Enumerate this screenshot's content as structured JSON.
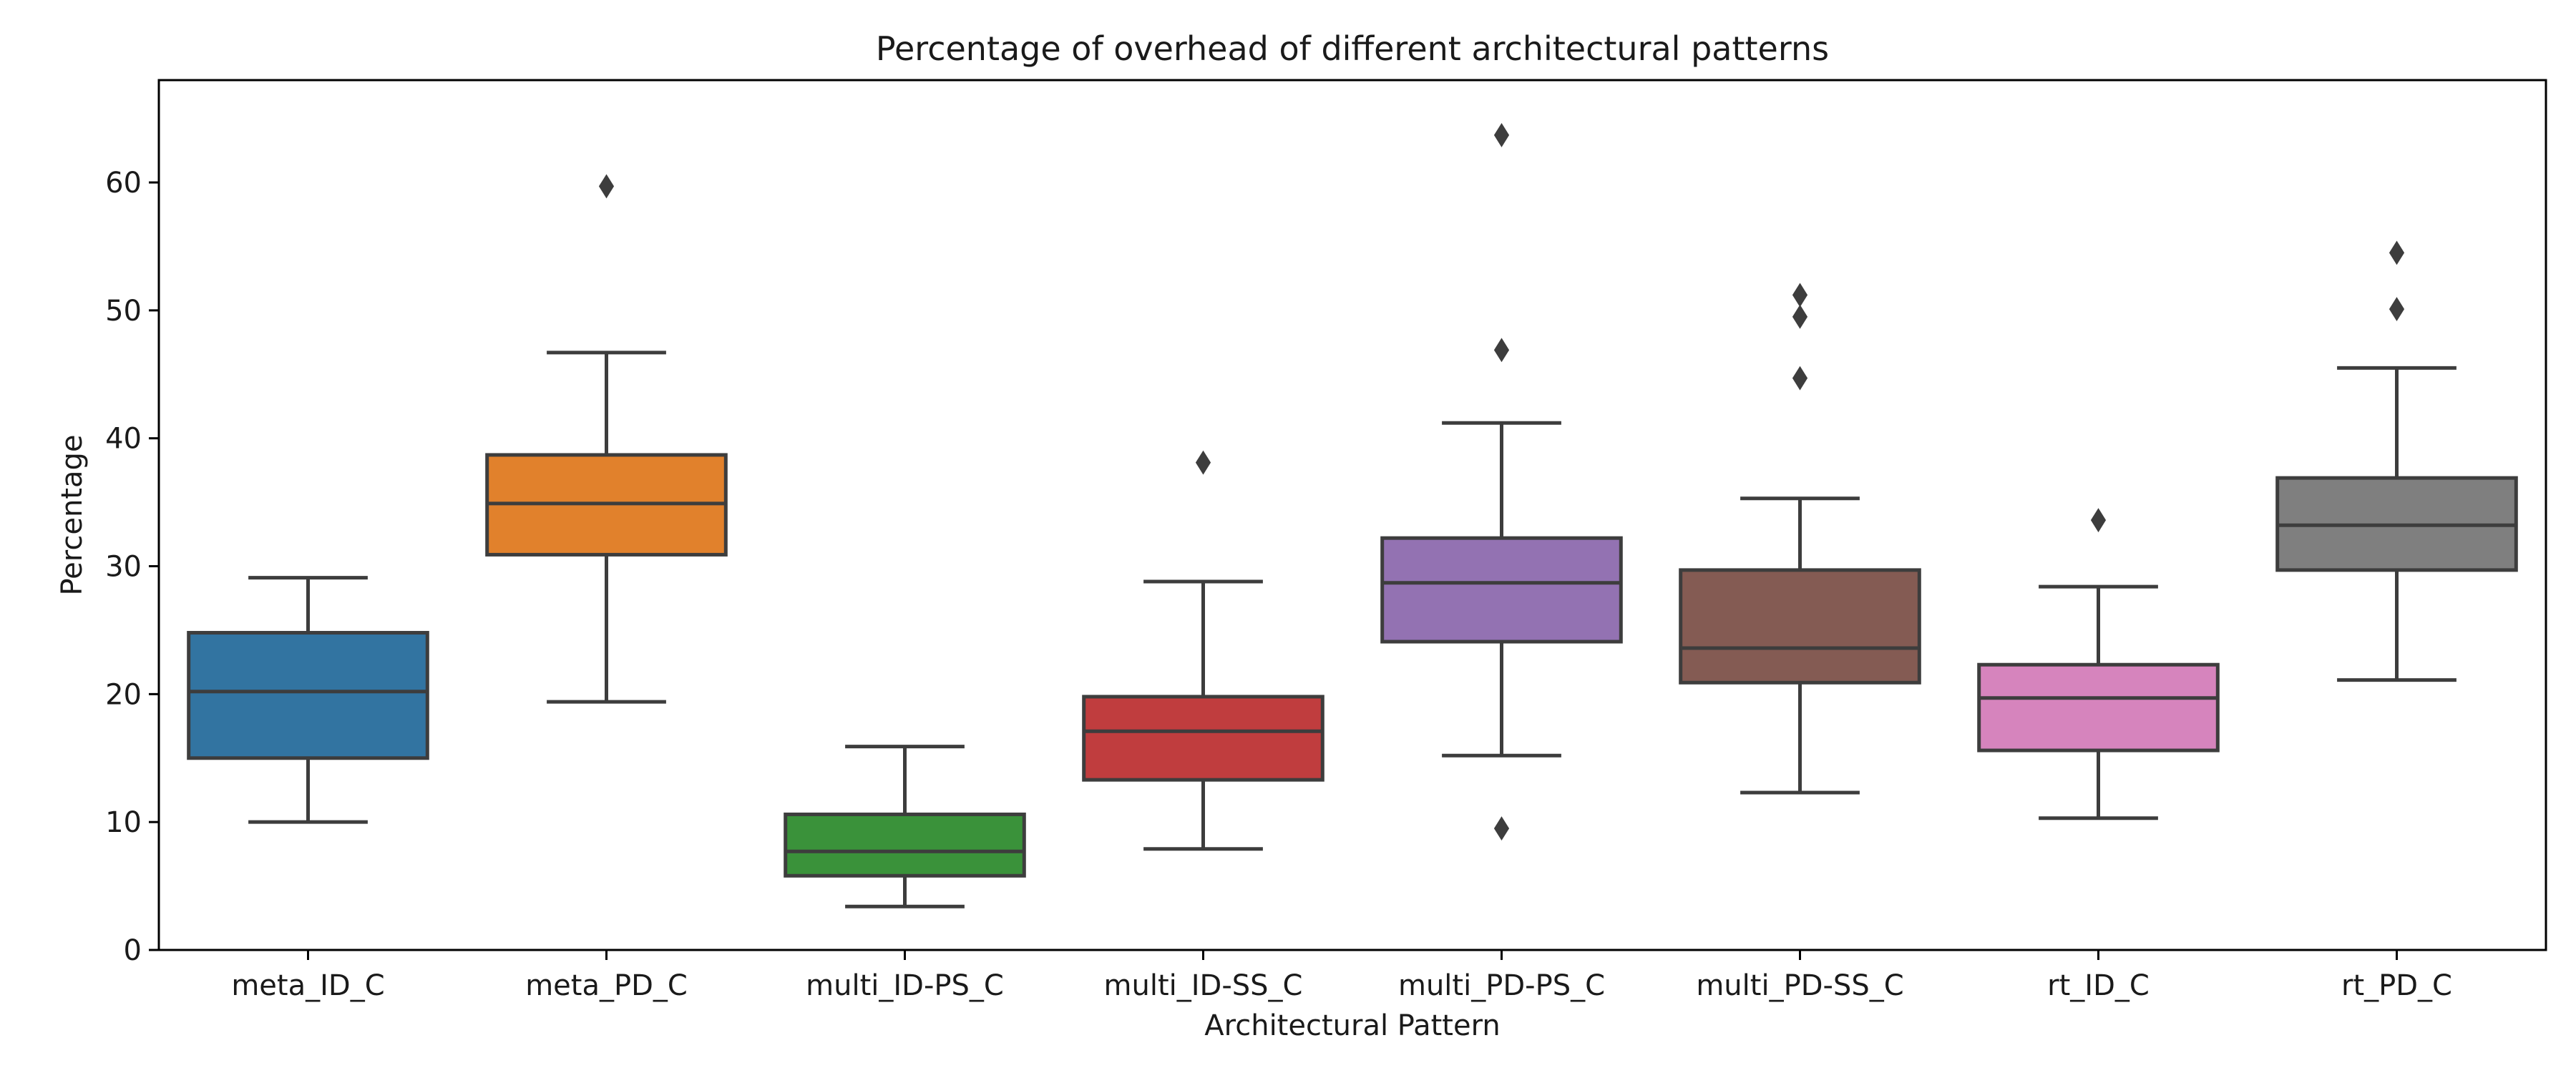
{
  "chart_data": {
    "type": "box",
    "title": "Percentage of overhead of different architectural patterns",
    "xlabel": "Architectural Pattern",
    "ylabel": "Percentage",
    "ylim": [
      0,
      68
    ],
    "yticks": [
      0,
      10,
      20,
      30,
      40,
      50,
      60
    ],
    "grid": false,
    "categories": [
      "meta_ID_C",
      "meta_PD_C",
      "multi_ID-PS_C",
      "multi_ID-SS_C",
      "multi_PD-PS_C",
      "multi_PD-SS_C",
      "rt_ID_C",
      "rt_PD_C"
    ],
    "boxes": [
      {
        "category": "meta_ID_C",
        "color": "#3274a1",
        "whisker_low": 10.0,
        "q1": 15.0,
        "median": 20.2,
        "q3": 24.8,
        "whisker_high": 29.1,
        "outliers": []
      },
      {
        "category": "meta_PD_C",
        "color": "#e1812c",
        "whisker_low": 19.4,
        "q1": 30.9,
        "median": 34.9,
        "q3": 38.7,
        "whisker_high": 46.7,
        "outliers": [
          59.7
        ]
      },
      {
        "category": "multi_ID-PS_C",
        "color": "#3a923a",
        "whisker_low": 3.4,
        "q1": 5.8,
        "median": 7.7,
        "q3": 10.6,
        "whisker_high": 15.9,
        "outliers": []
      },
      {
        "category": "multi_ID-SS_C",
        "color": "#c03d3e",
        "whisker_low": 7.9,
        "q1": 13.3,
        "median": 17.1,
        "q3": 19.8,
        "whisker_high": 28.8,
        "outliers": [
          38.1
        ]
      },
      {
        "category": "multi_PD-PS_C",
        "color": "#9372b2",
        "whisker_low": 15.2,
        "q1": 24.1,
        "median": 28.7,
        "q3": 32.2,
        "whisker_high": 41.2,
        "outliers": [
          63.7,
          46.9,
          9.5
        ]
      },
      {
        "category": "multi_PD-SS_C",
        "color": "#845b53",
        "whisker_low": 12.3,
        "q1": 20.9,
        "median": 23.6,
        "q3": 29.7,
        "whisker_high": 35.3,
        "outliers": [
          51.2,
          49.5,
          44.7
        ]
      },
      {
        "category": "rt_ID_C",
        "color": "#d684bd",
        "whisker_low": 10.3,
        "q1": 15.6,
        "median": 19.7,
        "q3": 22.3,
        "whisker_high": 28.4,
        "outliers": [
          33.6
        ]
      },
      {
        "category": "rt_PD_C",
        "color": "#7f7f7f",
        "whisker_low": 21.1,
        "q1": 29.7,
        "median": 33.2,
        "q3": 36.9,
        "whisker_high": 45.5,
        "outliers": [
          54.5,
          50.1
        ]
      }
    ]
  }
}
